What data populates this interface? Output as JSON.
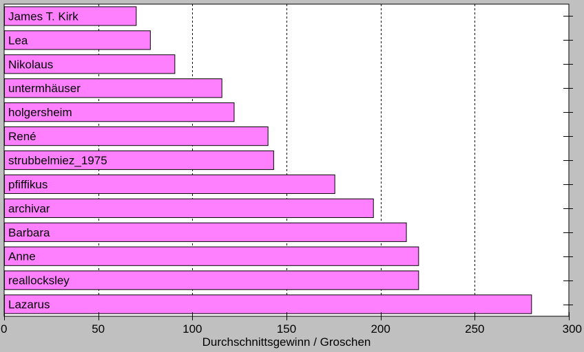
{
  "chart_data": {
    "type": "bar",
    "orientation": "horizontal",
    "title": "",
    "xlabel": "Durchschnittsgewinn / Groschen",
    "ylabel": "",
    "xlim": [
      0,
      300
    ],
    "xticks": [
      0,
      50,
      100,
      150,
      200,
      250,
      300
    ],
    "grid": "vertical dashed",
    "bar_color": "#ff80ff",
    "categories": [
      "James T. Kirk",
      "Lea",
      "Nikolaus",
      "untermhäuser",
      "holgersheim",
      "René",
      "strubbelmiez_1975",
      "pfiffikus",
      "archivar",
      "Barbara",
      "Anne",
      "reallocksley",
      "Lazarus"
    ],
    "values": [
      70,
      77.5,
      90.5,
      115.5,
      122,
      140,
      143,
      175.5,
      196,
      213.5,
      220,
      220,
      280
    ]
  }
}
